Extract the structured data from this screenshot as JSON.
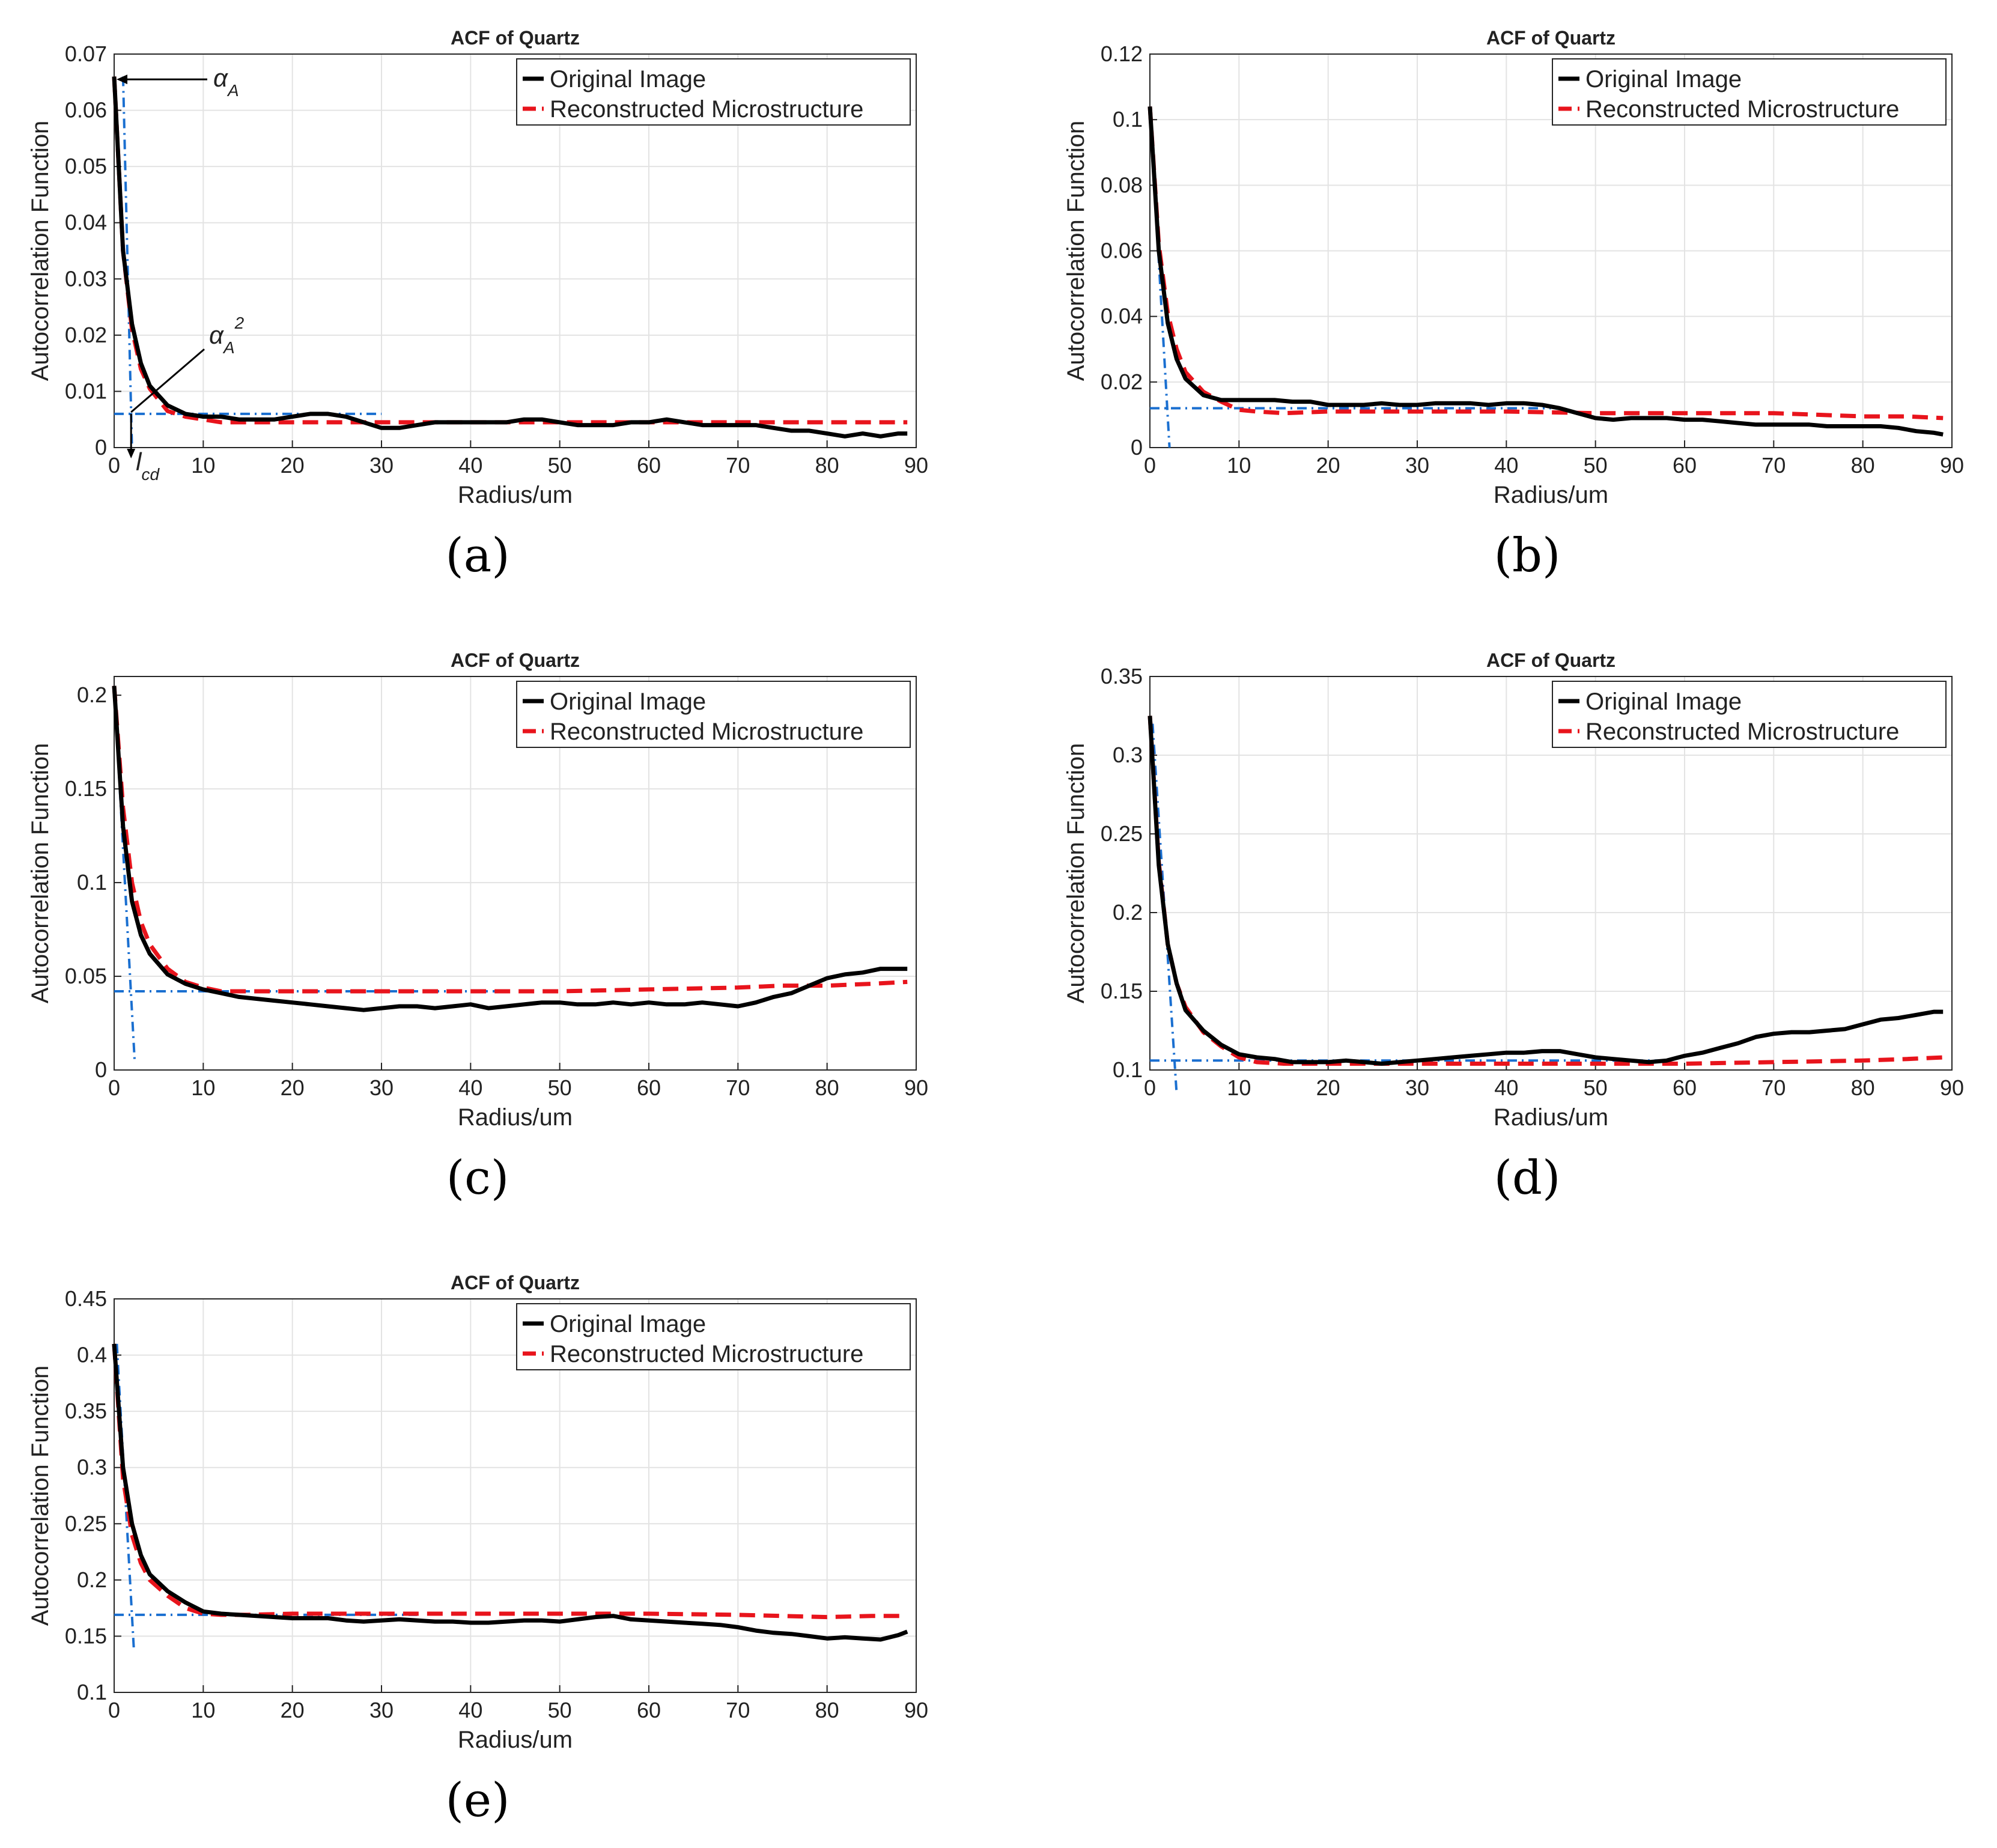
{
  "chart_data": [
    {
      "id": "a",
      "type": "line",
      "caption": "(a)",
      "title": "ACF of Quartz",
      "xlabel": "Radius/um",
      "ylabel": "Autocorrelation Function",
      "xlim": [
        0,
        90
      ],
      "ylim": [
        0,
        0.07
      ],
      "xticks": [
        0,
        10,
        20,
        30,
        40,
        50,
        60,
        70,
        80,
        90
      ],
      "yticks": [
        0,
        0.01,
        0.02,
        0.03,
        0.04,
        0.05,
        0.06,
        0.07
      ],
      "yticklabels": [
        "0",
        "0.01",
        "0.02",
        "0.03",
        "0.04",
        "0.05",
        "0.06",
        "0.07"
      ],
      "grid": true,
      "legend_position": "top-right",
      "series": [
        {
          "name": "Original Image",
          "color": "#000000",
          "style": "solid",
          "x": [
            0,
            1,
            2,
            3,
            4,
            6,
            8,
            10,
            12,
            14,
            16,
            18,
            20,
            22,
            24,
            26,
            28,
            30,
            32,
            34,
            36,
            38,
            40,
            42,
            44,
            46,
            48,
            50,
            52,
            54,
            56,
            58,
            60,
            62,
            64,
            66,
            68,
            70,
            72,
            74,
            76,
            78,
            80,
            82,
            84,
            86,
            88,
            89
          ],
          "y": [
            0.066,
            0.035,
            0.022,
            0.015,
            0.011,
            0.0075,
            0.006,
            0.0055,
            0.0055,
            0.005,
            0.005,
            0.005,
            0.0055,
            0.006,
            0.006,
            0.0055,
            0.0045,
            0.0035,
            0.0035,
            0.004,
            0.0045,
            0.0045,
            0.0045,
            0.0045,
            0.0045,
            0.005,
            0.005,
            0.0045,
            0.004,
            0.004,
            0.004,
            0.0045,
            0.0045,
            0.005,
            0.0045,
            0.004,
            0.004,
            0.004,
            0.004,
            0.0035,
            0.003,
            0.003,
            0.0025,
            0.002,
            0.0025,
            0.002,
            0.0025,
            0.0025
          ]
        },
        {
          "name": "Reconstructed Microstructure",
          "color": "#e8141c",
          "style": "dashed",
          "x": [
            0,
            1,
            2,
            3,
            4,
            6,
            8,
            10,
            12,
            14,
            16,
            20,
            25,
            30,
            35,
            40,
            45,
            50,
            55,
            60,
            65,
            70,
            75,
            80,
            85,
            89
          ],
          "y": [
            0.066,
            0.035,
            0.021,
            0.014,
            0.0105,
            0.0065,
            0.0055,
            0.005,
            0.0045,
            0.0045,
            0.0045,
            0.0045,
            0.0045,
            0.0045,
            0.0045,
            0.0045,
            0.0045,
            0.0045,
            0.0045,
            0.0045,
            0.0045,
            0.0045,
            0.0045,
            0.0045,
            0.0045,
            0.0045
          ]
        }
      ],
      "guides": {
        "h_y": 0.006,
        "h_x_end": 30,
        "v_x_top": 1.0,
        "v_x_bottom": 2.0,
        "v_y_top": 0.066,
        "v_y_bottom": 0
      },
      "annotations": {
        "alpha_a": "αA",
        "alpha_a_sq": "αA2",
        "lcd": "lcd"
      }
    },
    {
      "id": "b",
      "type": "line",
      "caption": "(b)",
      "title": "ACF of Quartz",
      "xlabel": "Radius/um",
      "ylabel": "Autocorrelation Function",
      "xlim": [
        0,
        90
      ],
      "ylim": [
        0,
        0.12
      ],
      "xticks": [
        0,
        10,
        20,
        30,
        40,
        50,
        60,
        70,
        80,
        90
      ],
      "yticks": [
        0,
        0.02,
        0.04,
        0.06,
        0.08,
        0.1,
        0.12
      ],
      "yticklabels": [
        "0",
        "0.02",
        "0.04",
        "0.06",
        "0.08",
        "0.1",
        "0.12"
      ],
      "grid": true,
      "legend_position": "top-right",
      "series": [
        {
          "name": "Original Image",
          "color": "#000000",
          "style": "solid",
          "x": [
            0,
            1,
            2,
            3,
            4,
            6,
            8,
            10,
            12,
            14,
            16,
            18,
            20,
            22,
            24,
            26,
            28,
            30,
            32,
            34,
            36,
            38,
            40,
            42,
            44,
            46,
            48,
            50,
            52,
            54,
            56,
            58,
            60,
            62,
            64,
            66,
            68,
            70,
            72,
            74,
            76,
            78,
            80,
            82,
            84,
            86,
            88,
            89
          ],
          "y": [
            0.104,
            0.06,
            0.038,
            0.027,
            0.021,
            0.016,
            0.0145,
            0.0145,
            0.0145,
            0.0145,
            0.014,
            0.014,
            0.013,
            0.013,
            0.013,
            0.0135,
            0.013,
            0.013,
            0.0135,
            0.0135,
            0.0135,
            0.013,
            0.0135,
            0.0135,
            0.013,
            0.012,
            0.0105,
            0.009,
            0.0085,
            0.009,
            0.009,
            0.009,
            0.0085,
            0.0085,
            0.008,
            0.0075,
            0.007,
            0.007,
            0.007,
            0.007,
            0.0065,
            0.0065,
            0.0065,
            0.0065,
            0.006,
            0.005,
            0.0045,
            0.004
          ]
        },
        {
          "name": "Reconstructed Microstructure",
          "color": "#e8141c",
          "style": "dashed",
          "x": [
            0,
            1,
            2,
            3,
            4,
            6,
            8,
            10,
            12,
            15,
            20,
            30,
            40,
            50,
            60,
            70,
            80,
            85,
            89
          ],
          "y": [
            0.104,
            0.062,
            0.041,
            0.03,
            0.023,
            0.017,
            0.014,
            0.0115,
            0.011,
            0.0105,
            0.011,
            0.011,
            0.011,
            0.0105,
            0.0105,
            0.0105,
            0.0095,
            0.0095,
            0.009
          ]
        }
      ],
      "guides": {
        "h_y": 0.012,
        "h_x_end": 45,
        "v_x_top": 0,
        "v_x_bottom": 2.2,
        "v_y_top": 0.104,
        "v_y_bottom": 0
      }
    },
    {
      "id": "c",
      "type": "line",
      "caption": "(c)",
      "title": "ACF of Quartz",
      "xlabel": "Radius/um",
      "ylabel": "Autocorrelation Function",
      "xlim": [
        0,
        90
      ],
      "ylim": [
        0,
        0.21
      ],
      "xticks": [
        0,
        10,
        20,
        30,
        40,
        50,
        60,
        70,
        80,
        90
      ],
      "yticks": [
        0,
        0.05,
        0.1,
        0.15,
        0.2
      ],
      "yticklabels": [
        "0",
        "0.05",
        "0.1",
        "0.15",
        "0.2"
      ],
      "grid": true,
      "legend_position": "top-right",
      "series": [
        {
          "name": "Original Image",
          "color": "#000000",
          "style": "solid",
          "x": [
            0,
            1,
            2,
            3,
            4,
            6,
            8,
            10,
            12,
            14,
            16,
            18,
            20,
            22,
            24,
            26,
            28,
            30,
            32,
            34,
            36,
            38,
            40,
            42,
            44,
            46,
            48,
            50,
            52,
            54,
            56,
            58,
            60,
            62,
            64,
            66,
            68,
            70,
            72,
            74,
            76,
            78,
            80,
            82,
            84,
            86,
            88,
            89
          ],
          "y": [
            0.205,
            0.13,
            0.09,
            0.072,
            0.062,
            0.051,
            0.046,
            0.043,
            0.041,
            0.039,
            0.038,
            0.037,
            0.036,
            0.035,
            0.034,
            0.033,
            0.032,
            0.033,
            0.034,
            0.034,
            0.033,
            0.034,
            0.035,
            0.033,
            0.034,
            0.035,
            0.036,
            0.036,
            0.035,
            0.035,
            0.036,
            0.035,
            0.036,
            0.035,
            0.035,
            0.036,
            0.035,
            0.034,
            0.036,
            0.039,
            0.041,
            0.045,
            0.049,
            0.051,
            0.052,
            0.054,
            0.054,
            0.054
          ]
        },
        {
          "name": "Reconstructed Microstructure",
          "color": "#e8141c",
          "style": "dashed",
          "x": [
            0,
            1,
            2,
            3,
            4,
            6,
            8,
            10,
            12,
            15,
            20,
            30,
            40,
            50,
            60,
            70,
            75,
            80,
            85,
            89
          ],
          "y": [
            0.205,
            0.14,
            0.1,
            0.079,
            0.067,
            0.054,
            0.047,
            0.044,
            0.042,
            0.042,
            0.042,
            0.042,
            0.042,
            0.042,
            0.043,
            0.044,
            0.045,
            0.045,
            0.046,
            0.047
          ]
        }
      ],
      "guides": {
        "h_y": 0.042,
        "h_x_end": 43,
        "v_x_top": 0,
        "v_x_bottom": 2.3,
        "v_y_top": 0.205,
        "v_y_bottom": 0.005
      }
    },
    {
      "id": "d",
      "type": "line",
      "caption": "(d)",
      "title": "ACF of Quartz",
      "xlabel": "Radius/um",
      "ylabel": "Autocorrelation Function",
      "xlim": [
        0,
        90
      ],
      "ylim": [
        0.1,
        0.35
      ],
      "xticks": [
        0,
        10,
        20,
        30,
        40,
        50,
        60,
        70,
        80,
        90
      ],
      "yticks": [
        0.1,
        0.15,
        0.2,
        0.25,
        0.3,
        0.35
      ],
      "yticklabels": [
        "0.1",
        "0.15",
        "0.2",
        "0.25",
        "0.3",
        "0.35"
      ],
      "grid": true,
      "legend_position": "top-right",
      "series": [
        {
          "name": "Original Image",
          "color": "#000000",
          "style": "solid",
          "x": [
            0,
            1,
            2,
            3,
            4,
            6,
            8,
            10,
            12,
            14,
            16,
            18,
            20,
            22,
            24,
            26,
            28,
            30,
            32,
            34,
            36,
            38,
            40,
            42,
            44,
            46,
            48,
            50,
            52,
            54,
            56,
            58,
            60,
            62,
            64,
            66,
            68,
            70,
            72,
            74,
            76,
            78,
            80,
            82,
            84,
            86,
            88,
            89
          ],
          "y": [
            0.325,
            0.23,
            0.18,
            0.155,
            0.138,
            0.125,
            0.116,
            0.11,
            0.108,
            0.107,
            0.105,
            0.105,
            0.105,
            0.106,
            0.105,
            0.104,
            0.105,
            0.106,
            0.107,
            0.108,
            0.109,
            0.11,
            0.111,
            0.111,
            0.112,
            0.112,
            0.11,
            0.108,
            0.107,
            0.106,
            0.105,
            0.106,
            0.109,
            0.111,
            0.114,
            0.117,
            0.121,
            0.123,
            0.124,
            0.124,
            0.125,
            0.126,
            0.129,
            0.132,
            0.133,
            0.135,
            0.137,
            0.137
          ]
        },
        {
          "name": "Reconstructed Microstructure",
          "color": "#e8141c",
          "style": "dashed",
          "x": [
            0,
            1,
            2,
            3,
            4,
            6,
            8,
            10,
            12,
            15,
            20,
            30,
            40,
            50,
            60,
            70,
            80,
            85,
            89
          ],
          "y": [
            0.325,
            0.232,
            0.18,
            0.155,
            0.14,
            0.124,
            0.115,
            0.108,
            0.105,
            0.104,
            0.104,
            0.104,
            0.104,
            0.104,
            0.104,
            0.105,
            0.106,
            0.107,
            0.108
          ]
        }
      ],
      "guides": {
        "h_y": 0.106,
        "h_x_end": 57,
        "v_x_top": 0.3,
        "v_x_bottom": 3.0,
        "v_y_top": 0.32,
        "v_y_bottom": 0.085
      }
    },
    {
      "id": "e",
      "type": "line",
      "caption": "(e)",
      "title": "ACF of Quartz",
      "xlabel": "Radius/um",
      "ylabel": "Autocorrelation Function",
      "xlim": [
        0,
        90
      ],
      "ylim": [
        0.1,
        0.45
      ],
      "xticks": [
        0,
        10,
        20,
        30,
        40,
        50,
        60,
        70,
        80,
        90
      ],
      "yticks": [
        0.1,
        0.15,
        0.2,
        0.25,
        0.3,
        0.35,
        0.4,
        0.45
      ],
      "yticklabels": [
        "0.1",
        "0.15",
        "0.2",
        "0.25",
        "0.3",
        "0.35",
        "0.4",
        "0.45"
      ],
      "grid": true,
      "legend_position": "top-right",
      "series": [
        {
          "name": "Original Image",
          "color": "#000000",
          "style": "solid",
          "x": [
            0,
            1,
            2,
            3,
            4,
            6,
            8,
            10,
            12,
            14,
            16,
            18,
            20,
            22,
            24,
            26,
            28,
            30,
            32,
            34,
            36,
            38,
            40,
            42,
            44,
            46,
            48,
            50,
            52,
            54,
            56,
            58,
            60,
            62,
            64,
            66,
            68,
            70,
            72,
            74,
            76,
            78,
            80,
            82,
            84,
            86,
            88,
            89
          ],
          "y": [
            0.41,
            0.3,
            0.25,
            0.222,
            0.205,
            0.19,
            0.18,
            0.172,
            0.17,
            0.169,
            0.168,
            0.167,
            0.166,
            0.166,
            0.166,
            0.164,
            0.163,
            0.164,
            0.165,
            0.164,
            0.163,
            0.163,
            0.162,
            0.162,
            0.163,
            0.164,
            0.164,
            0.163,
            0.165,
            0.167,
            0.168,
            0.165,
            0.164,
            0.163,
            0.162,
            0.161,
            0.16,
            0.158,
            0.155,
            0.153,
            0.152,
            0.15,
            0.148,
            0.149,
            0.148,
            0.147,
            0.151,
            0.154
          ]
        },
        {
          "name": "Reconstructed Microstructure",
          "color": "#e8141c",
          "style": "dashed",
          "x": [
            0,
            1,
            2,
            3,
            4,
            6,
            8,
            10,
            12,
            15,
            20,
            30,
            40,
            50,
            60,
            70,
            80,
            85,
            89
          ],
          "y": [
            0.41,
            0.29,
            0.24,
            0.215,
            0.2,
            0.186,
            0.175,
            0.17,
            0.169,
            0.169,
            0.17,
            0.17,
            0.17,
            0.17,
            0.17,
            0.169,
            0.167,
            0.168,
            0.168
          ]
        }
      ],
      "guides": {
        "h_y": 0.169,
        "h_x_end": 34,
        "v_x_top": 0.3,
        "v_x_bottom": 2.2,
        "v_y_top": 0.41,
        "v_y_bottom": 0.14
      }
    }
  ]
}
